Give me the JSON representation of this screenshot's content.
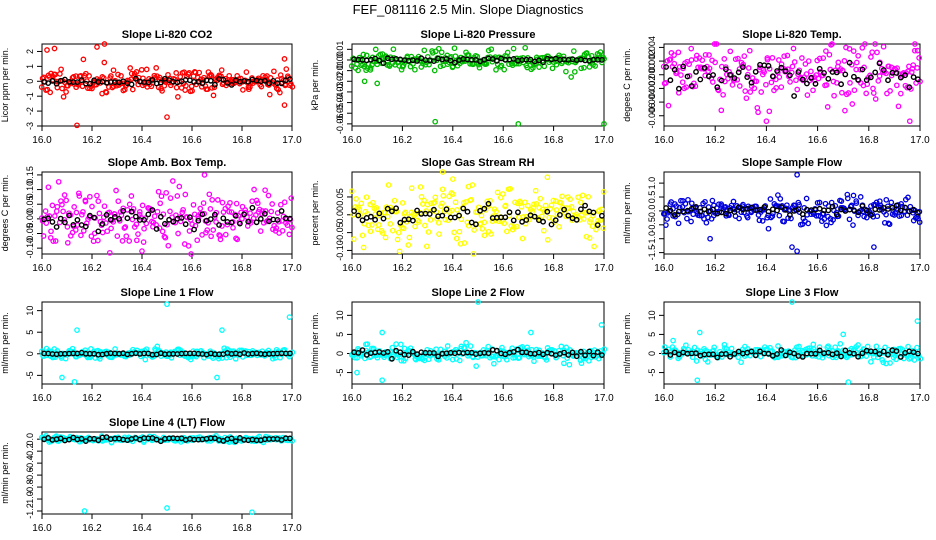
{
  "page_title": "FEF_081116  2.5 Min. Slope Diagnostics",
  "chart_data": [
    {
      "type": "scatter",
      "title": "Slope Li-820 CO2",
      "ylabel": "Licor ppm per min.",
      "xlim": [
        16.0,
        17.0
      ],
      "ylim": [
        -3,
        2.5
      ],
      "xticks": [
        16.0,
        16.2,
        16.4,
        16.6,
        16.8,
        17.0
      ],
      "xtick_labels": [
        "16.0",
        "16.2",
        "16.4",
        "16.6",
        "16.8",
        "17.0"
      ],
      "yticks": [
        -3,
        -2,
        -1,
        0,
        1,
        2
      ],
      "ytick_labels": [
        "-3",
        "-2",
        "-1",
        "0",
        "1",
        "2"
      ],
      "color": "#ff0000",
      "spread": 0.75,
      "black_spread": 0.2,
      "outliers": [
        [
          16.02,
          2.1
        ],
        [
          16.05,
          2.2
        ],
        [
          16.22,
          2.3
        ],
        [
          16.25,
          2.5
        ],
        [
          16.14,
          -2.95
        ],
        [
          16.5,
          -2.4
        ],
        [
          16.97,
          1.5
        ],
        [
          16.97,
          -1.6
        ]
      ],
      "seed": 11
    },
    {
      "type": "scatter",
      "title": "Slope Li-820 Pressure",
      "ylabel": "kPa per min.",
      "xlim": [
        16.0,
        17.0
      ],
      "ylim": [
        -0.062,
        0.015
      ],
      "xticks": [
        16.0,
        16.2,
        16.4,
        16.6,
        16.8,
        17.0
      ],
      "xtick_labels": [
        "16.0",
        "16.2",
        "16.4",
        "16.6",
        "16.8",
        "17.0"
      ],
      "yticks": [
        -0.06,
        -0.05,
        -0.04,
        -0.03,
        -0.02,
        -0.01,
        0,
        0.01
      ],
      "ytick_labels": [
        "-0.06",
        "-0.05",
        "-0.04",
        "-0.03",
        "-0.02",
        "-0.01",
        "0.00",
        "0.01"
      ],
      "color": "#00bb00",
      "spread": 0.008,
      "black_spread": 0.002,
      "outliers": [
        [
          16.33,
          -0.058
        ],
        [
          16.66,
          -0.06
        ],
        [
          17.0,
          -0.06
        ],
        [
          16.05,
          -0.02
        ],
        [
          16.1,
          -0.022
        ]
      ],
      "seed": 23
    },
    {
      "type": "scatter",
      "title": "Slope Li-820 Temp.",
      "ylabel": "degees C per min.",
      "xlim": [
        16.0,
        17.0
      ],
      "ylim": [
        -0.0075,
        0.0045
      ],
      "xticks": [
        16.0,
        16.2,
        16.4,
        16.6,
        16.8,
        17.0
      ],
      "xtick_labels": [
        "16.0",
        "16.2",
        "16.4",
        "16.6",
        "16.8",
        "17.0"
      ],
      "yticks": [
        -0.006,
        -0.004,
        -0.002,
        0,
        0.002,
        0.004
      ],
      "ytick_labels": [
        "-0.006",
        "-0.004",
        "-0.002",
        "0.000",
        "0.002",
        "0.004"
      ],
      "color": "#ff00ff",
      "spread": 0.004,
      "black_spread": 0.002,
      "outliers": [
        [
          16.98,
          0.0045
        ],
        [
          16.4,
          -0.0068
        ],
        [
          16.96,
          -0.0068
        ]
      ],
      "seed": 37
    },
    {
      "type": "scatter",
      "title": "Slope Amb. Box Temp.",
      "ylabel": "degrees C per min.",
      "xlim": [
        16.0,
        17.0
      ],
      "ylim": [
        -0.12,
        0.16
      ],
      "xticks": [
        16.0,
        16.2,
        16.4,
        16.6,
        16.8,
        17.0
      ],
      "xtick_labels": [
        "16.0",
        "16.2",
        "16.4",
        "16.6",
        "16.8",
        "17.0"
      ],
      "yticks": [
        -0.1,
        -0.05,
        0,
        0.05,
        0.1,
        0.15
      ],
      "ytick_labels": [
        "-0.10",
        "-0.05",
        "0.00",
        "0.05",
        "0.10",
        "0.15"
      ],
      "color": "#ff00ff",
      "spread": 0.09,
      "black_spread": 0.03,
      "outliers": [
        [
          16.65,
          0.15
        ],
        [
          16.4,
          -0.11
        ]
      ],
      "seed": 41
    },
    {
      "type": "scatter",
      "title": "Slope Gas Stream RH",
      "ylabel": "percent per min.",
      "xlim": [
        16.0,
        17.0
      ],
      "ylim": [
        -0.11,
        0.12
      ],
      "xticks": [
        16.0,
        16.2,
        16.4,
        16.6,
        16.8,
        17.0
      ],
      "xtick_labels": [
        "16.0",
        "16.2",
        "16.4",
        "16.6",
        "16.8",
        "17.0"
      ],
      "yticks": [
        -0.1,
        -0.05,
        0,
        0.05
      ],
      "ytick_labels": [
        "-0.10",
        "-0.05",
        "0.00",
        "0.05"
      ],
      "color": "#ffff00",
      "spread": 0.07,
      "black_spread": 0.03,
      "outliers": [
        [
          16.36,
          0.12
        ],
        [
          16.4,
          0.1
        ]
      ],
      "seed": 53
    },
    {
      "type": "scatter",
      "title": "Slope Sample Flow",
      "ylabel": "ml/min per min.",
      "xlim": [
        16.0,
        17.0
      ],
      "ylim": [
        -1.55,
        1.4
      ],
      "xticks": [
        16.0,
        16.2,
        16.4,
        16.6,
        16.8,
        17.0
      ],
      "xtick_labels": [
        "16.0",
        "16.2",
        "16.4",
        "16.6",
        "16.8",
        "17.0"
      ],
      "yticks": [
        -1.5,
        -1.0,
        -0.5,
        0,
        0.5,
        1.0
      ],
      "ytick_labels": [
        "-1.5",
        "-1.0",
        "-0.5",
        "0.0",
        "0.5",
        "1.0"
      ],
      "color": "#0000dd",
      "spread": 0.4,
      "black_spread": 0.2,
      "outliers": [
        [
          16.52,
          1.3
        ],
        [
          16.5,
          -1.3
        ],
        [
          16.52,
          -1.45
        ],
        [
          16.82,
          -1.3
        ],
        [
          16.18,
          -1.0
        ]
      ],
      "seed": 67
    },
    {
      "type": "scatter",
      "title": "Slope Line 1 Flow",
      "ylabel": "ml/min per min.",
      "xlim": [
        16.0,
        17.0
      ],
      "ylim": [
        -7,
        12
      ],
      "xticks": [
        16.0,
        16.2,
        16.4,
        16.6,
        16.8,
        17.0
      ],
      "xtick_labels": [
        "16.0",
        "16.2",
        "16.4",
        "16.6",
        "16.8",
        "17.0"
      ],
      "yticks": [
        -5,
        0,
        5,
        10
      ],
      "ytick_labels": [
        "-5",
        "0",
        "5",
        "10"
      ],
      "color": "#00ffff",
      "spread": 1.0,
      "black_spread": 0.2,
      "outliers": [
        [
          16.5,
          11.5
        ],
        [
          16.99,
          8.5
        ],
        [
          16.14,
          5.5
        ],
        [
          16.72,
          5.5
        ],
        [
          16.13,
          -6.5
        ],
        [
          16.08,
          -5.5
        ],
        [
          16.7,
          -5.5
        ]
      ],
      "seed": 79
    },
    {
      "type": "scatter",
      "title": "Slope Line 2 Flow",
      "ylabel": "ml/min per min.",
      "xlim": [
        16.0,
        17.0
      ],
      "ylim": [
        -8,
        13.5
      ],
      "xticks": [
        16.0,
        16.2,
        16.4,
        16.6,
        16.8,
        17.0
      ],
      "xtick_labels": [
        "16.0",
        "16.2",
        "16.4",
        "16.6",
        "16.8",
        "17.0"
      ],
      "yticks": [
        -5,
        0,
        5,
        10
      ],
      "ytick_labels": [
        "-5",
        "0",
        "5",
        "10"
      ],
      "color": "#00ffff",
      "spread": 1.8,
      "black_spread": 1.0,
      "outliers": [
        [
          16.5,
          13.5
        ],
        [
          16.99,
          7.5
        ],
        [
          16.12,
          5.5
        ],
        [
          16.71,
          5.5
        ],
        [
          16.12,
          -7
        ],
        [
          16.02,
          -5
        ]
      ],
      "seed": 83
    },
    {
      "type": "scatter",
      "title": "Slope Line 3 Flow",
      "ylabel": "ml/min per min.",
      "xlim": [
        16.0,
        17.0
      ],
      "ylim": [
        -8,
        13.5
      ],
      "xticks": [
        16.0,
        16.2,
        16.4,
        16.6,
        16.8,
        17.0
      ],
      "xtick_labels": [
        "16.0",
        "16.2",
        "16.4",
        "16.6",
        "16.8",
        "17.0"
      ],
      "yticks": [
        -5,
        0,
        5,
        10
      ],
      "ytick_labels": [
        "-5",
        "0",
        "5",
        "10"
      ],
      "color": "#00ffff",
      "spread": 2.0,
      "black_spread": 1.2,
      "outliers": [
        [
          16.5,
          13.5
        ],
        [
          16.99,
          8.5
        ],
        [
          16.14,
          5.5
        ],
        [
          16.7,
          5.0
        ],
        [
          16.13,
          -7
        ],
        [
          16.72,
          -7.5
        ]
      ],
      "seed": 97
    },
    {
      "type": "scatter",
      "title": "Slope Line 4 (LT) Flow",
      "ylabel": "ml/min per min.",
      "xlim": [
        16.0,
        17.0
      ],
      "ylim": [
        -1.25,
        0.12
      ],
      "xticks": [
        16.0,
        16.2,
        16.4,
        16.6,
        16.8,
        17.0
      ],
      "xtick_labels": [
        "16.0",
        "16.2",
        "16.4",
        "16.6",
        "16.8",
        "17.0"
      ],
      "yticks": [
        -1.2,
        -1.0,
        -0.8,
        -0.6,
        -0.4,
        -0.2,
        0
      ],
      "ytick_labels": [
        "-1.2",
        "-1.0",
        "-0.8",
        "-0.6",
        "-0.4",
        "-0.2",
        "0.0"
      ],
      "color": "#00ffff",
      "spread": 0.04,
      "black_spread": 0.03,
      "outliers": [
        [
          16.17,
          -1.2
        ],
        [
          16.5,
          -1.15
        ],
        [
          16.84,
          -1.22
        ]
      ],
      "seed": 101
    }
  ]
}
